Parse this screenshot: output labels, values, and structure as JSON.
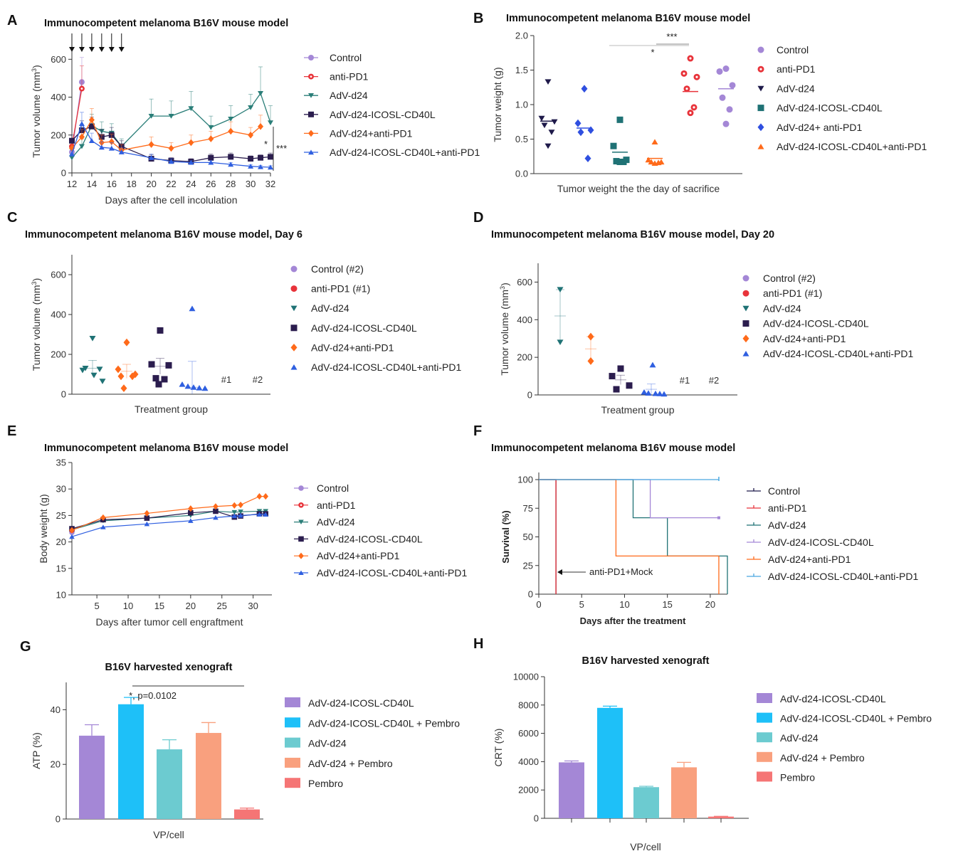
{
  "chart_data": [
    {
      "panel": "A",
      "type": "line",
      "title": "Immunocompetent melanoma B16V mouse model",
      "xlabel": "Days after the cell incolulation",
      "ylabel": "Tumor volume (mm³)",
      "xlim": [
        12,
        32
      ],
      "ylim": [
        0,
        650
      ],
      "xticks": [
        "12",
        "14",
        "16",
        "18",
        "20",
        "22",
        "24",
        "26",
        "28",
        "30",
        "32"
      ],
      "yticks": [
        "0",
        "200",
        "400",
        "600"
      ],
      "injection_days": [
        12,
        13,
        14,
        15,
        16,
        17
      ],
      "series": [
        {
          "name": "Control",
          "color": "#a487d6",
          "marker": "circle",
          "x": [
            12,
            13
          ],
          "y": [
            110,
            480
          ],
          "err": [
            20,
            130
          ]
        },
        {
          "name": "anti-PD1",
          "color": "#e8333a",
          "marker": "ring",
          "x": [
            12,
            13
          ],
          "y": [
            140,
            445
          ],
          "err": [
            25,
            120
          ]
        },
        {
          "name": "AdV-d24",
          "color": "#2a7e78",
          "marker": "tri-down",
          "x": [
            12,
            13,
            14,
            15,
            16,
            17,
            20,
            22,
            24,
            26,
            28,
            30,
            31,
            32
          ],
          "y": [
            80,
            140,
            250,
            220,
            210,
            140,
            300,
            300,
            340,
            240,
            285,
            345,
            420,
            265
          ],
          "err": [
            20,
            40,
            60,
            50,
            50,
            40,
            90,
            80,
            90,
            60,
            70,
            70,
            140,
            90
          ]
        },
        {
          "name": "AdV-d24-ICOSL-CD40L",
          "color": "#2b1d4e",
          "marker": "square",
          "x": [
            12,
            13,
            14,
            15,
            16,
            17,
            20,
            22,
            24,
            26,
            28,
            30,
            31,
            32
          ],
          "y": [
            170,
            225,
            245,
            190,
            200,
            140,
            75,
            65,
            60,
            80,
            85,
            75,
            80,
            85
          ],
          "err": [
            30,
            50,
            50,
            40,
            40,
            30,
            20,
            15,
            15,
            20,
            20,
            15,
            15,
            20
          ]
        },
        {
          "name": "AdV-d24+anti-PD1",
          "color": "#ff6a1a",
          "marker": "diamond",
          "x": [
            12,
            13,
            14,
            15,
            16,
            17,
            20,
            22,
            24,
            26,
            28,
            30,
            31
          ],
          "y": [
            130,
            190,
            280,
            160,
            165,
            120,
            150,
            130,
            160,
            180,
            220,
            200,
            245
          ],
          "err": [
            20,
            40,
            60,
            40,
            40,
            30,
            40,
            30,
            40,
            40,
            50,
            40,
            60
          ]
        },
        {
          "name": "AdV-d24-ICOSL-CD40L+anti-PD1",
          "color": "#2f5fe0",
          "marker": "tri-up",
          "x": [
            12,
            13,
            14,
            15,
            16,
            17,
            20,
            22,
            24,
            26,
            28,
            30,
            31,
            32
          ],
          "y": [
            100,
            260,
            170,
            135,
            130,
            110,
            80,
            60,
            55,
            55,
            45,
            35,
            32,
            30
          ],
          "err": [
            20,
            60,
            40,
            30,
            30,
            25,
            20,
            15,
            10,
            10,
            10,
            8,
            8,
            8
          ]
        }
      ],
      "annotations": [
        "*",
        "***"
      ]
    },
    {
      "panel": "B",
      "type": "scatter",
      "title": "Immunocompetent melanoma B16V mouse model",
      "xlabel": "Tumor weight the the day of sacrifice",
      "ylabel": "Tumor weight (g)",
      "ylim": [
        0,
        2.0
      ],
      "yticks": [
        "0.0",
        "0.5",
        "1.0",
        "1.5",
        "2.0"
      ],
      "series": [
        {
          "name": "AdV-d24",
          "color": "#1f1a4a",
          "marker": "tri-down",
          "values": [
            1.33,
            0.8,
            0.75,
            0.7,
            0.6,
            0.4
          ],
          "mean": 0.76
        },
        {
          "name": "AdV-d24+ anti-PD1",
          "color": "#2f4fe0",
          "marker": "diamond",
          "values": [
            1.23,
            0.73,
            0.63,
            0.6,
            0.22
          ],
          "mean": 0.66
        },
        {
          "name": "AdV-d24-ICOSL-CD40L",
          "color": "#1f7275",
          "marker": "square",
          "values": [
            0.78,
            0.4,
            0.2,
            0.18,
            0.17,
            0.17
          ],
          "mean": 0.31
        },
        {
          "name": "AdV-d24-ICOSL-CD40L+anti-PD1",
          "color": "#ff6a1a",
          "marker": "tri-up",
          "values": [
            0.46,
            0.2,
            0.17,
            0.17,
            0.16,
            0.15
          ],
          "mean": 0.22
        },
        {
          "name": "anti-PD1",
          "color": "#e8333a",
          "marker": "ring",
          "values": [
            1.67,
            1.45,
            1.4,
            1.23,
            0.96,
            0.88
          ],
          "mean": 1.19
        },
        {
          "name": "Control",
          "color": "#a487d6",
          "marker": "circle",
          "values": [
            1.52,
            1.48,
            1.28,
            1.1,
            0.93,
            0.72
          ],
          "mean": 1.23
        }
      ],
      "legend": [
        "Control",
        "anti-PD1",
        "AdV-d24",
        "AdV-d24-ICOSL-CD40L",
        "AdV-d24+ anti-PD1",
        "AdV-d24-ICOSL-CD40L+anti-PD1"
      ],
      "annotations": [
        "***",
        "*"
      ]
    },
    {
      "panel": "C",
      "type": "scatter",
      "title": "Immunocompetent melanoma B16V mouse model, Day 6",
      "xlabel": "Treatment group",
      "ylabel": "Tumor volume (mm³)",
      "ylim": [
        0,
        700
      ],
      "yticks": [
        "0",
        "200",
        "400",
        "600"
      ],
      "series": [
        {
          "name": "AdV-d24",
          "color": "#1f7275",
          "marker": "tri-down",
          "values": [
            280,
            130,
            125,
            120,
            95,
            65
          ],
          "mean": 130,
          "err": 40
        },
        {
          "name": "AdV-d24+anti-PD1",
          "color": "#ff6a1a",
          "marker": "diamond",
          "values": [
            260,
            125,
            100,
            90,
            90,
            30
          ],
          "mean": 115,
          "err": 35
        },
        {
          "name": "AdV-d24-ICOSL-CD40L",
          "color": "#2b1d4e",
          "marker": "square",
          "values": [
            320,
            150,
            145,
            80,
            75,
            50
          ],
          "mean": 140,
          "err": 40
        },
        {
          "name": "AdV-d24-ICOSL-CD40L+anti-PD1",
          "color": "#2f5fe0",
          "marker": "tri-up",
          "values": [
            430,
            50,
            40,
            35,
            32,
            30
          ],
          "mean": 35,
          "err": 130
        }
      ],
      "legend": [
        "Control (#2)",
        "anti-PD1 (#1)",
        "AdV-d24",
        "AdV-d24-ICOSL-CD40L",
        "AdV-d24+anti-PD1",
        "AdV-d24-ICOSL-CD40L+anti-PD1"
      ],
      "notes": [
        "#1",
        "#2"
      ]
    },
    {
      "panel": "D",
      "type": "scatter",
      "title": "Immunocompetent melanoma B16V mouse model, Day 20",
      "xlabel": "Treatment group",
      "ylabel": "Tumor volume (mm³)",
      "ylim": [
        0,
        700
      ],
      "yticks": [
        "0",
        "200",
        "400",
        "600"
      ],
      "series": [
        {
          "name": "AdV-d24",
          "color": "#1f7275",
          "marker": "tri-down",
          "values": [
            560,
            280
          ],
          "mean": 420,
          "err": 140
        },
        {
          "name": "AdV-d24+anti-PD1",
          "color": "#ff6a1a",
          "marker": "diamond",
          "values": [
            310,
            180
          ],
          "mean": 245,
          "err": 65
        },
        {
          "name": "AdV-d24-ICOSL-CD40L",
          "color": "#2b1d4e",
          "marker": "square",
          "values": [
            140,
            100,
            50,
            30
          ],
          "mean": 80,
          "err": 25
        },
        {
          "name": "AdV-d24-ICOSL-CD40L+anti-PD1",
          "color": "#2f5fe0",
          "marker": "tri-up",
          "values": [
            160,
            15,
            10,
            8,
            7,
            5
          ],
          "mean": 30,
          "err": 28
        }
      ],
      "legend": [
        "Control (#2)",
        "anti-PD1 (#1)",
        "AdV-d24",
        "AdV-d24-ICOSL-CD40L",
        "AdV-d24+anti-PD1",
        "AdV-d24-ICOSL-CD40L+anti-PD1"
      ],
      "notes": [
        "#1",
        "#2"
      ]
    },
    {
      "panel": "E",
      "type": "line",
      "title": "Immunocompetent melanoma B16V mouse model",
      "xlabel": "Days after tumor cell engraftment",
      "ylabel": "Body weight (g)",
      "xlim": [
        1,
        33
      ],
      "ylim": [
        10,
        35
      ],
      "xticks": [
        "5",
        "10",
        "15",
        "20",
        "25",
        "30"
      ],
      "yticks": [
        "10",
        "15",
        "20",
        "25",
        "30",
        "35"
      ],
      "series": [
        {
          "name": "Control",
          "color": "#a487d6",
          "marker": "circle",
          "x": [
            1
          ],
          "y": [
            21.8
          ]
        },
        {
          "name": "anti-PD1",
          "color": "#e8333a",
          "marker": "ring",
          "x": [
            1
          ],
          "y": [
            22.2
          ]
        },
        {
          "name": "AdV-d24",
          "color": "#2a7e78",
          "marker": "tri-down",
          "x": [
            1,
            6,
            13,
            20,
            24,
            27,
            28,
            31,
            32
          ],
          "y": [
            22.3,
            24.0,
            24.5,
            25.0,
            25.8,
            25.6,
            25.7,
            25.8,
            25.8
          ]
        },
        {
          "name": "AdV-d24-ICOSL-CD40L",
          "color": "#2b1d4e",
          "marker": "square",
          "x": [
            1,
            6,
            13,
            20,
            24,
            27,
            28,
            31,
            32
          ],
          "y": [
            22.5,
            24.2,
            24.5,
            25.5,
            25.8,
            24.7,
            24.9,
            25.3,
            25.3
          ]
        },
        {
          "name": "AdV-d24+anti-PD1",
          "color": "#ff6a1a",
          "marker": "diamond",
          "x": [
            1,
            6,
            13,
            20,
            24,
            27,
            28,
            31,
            32
          ],
          "y": [
            22.2,
            24.6,
            25.4,
            26.3,
            26.7,
            26.9,
            27.0,
            28.6,
            28.6
          ]
        },
        {
          "name": "AdV-d24-ICOSL-CD40L+anti-PD1",
          "color": "#2f5fe0",
          "marker": "tri-up",
          "x": [
            1,
            6,
            13,
            20,
            24,
            27,
            28,
            31,
            32
          ],
          "y": [
            21.0,
            22.8,
            23.4,
            24.0,
            24.6,
            24.9,
            25.0,
            25.2,
            25.2
          ]
        }
      ]
    },
    {
      "panel": "F",
      "type": "line",
      "title": "Immunocompetent melanoma B16V mouse model",
      "xlabel": "Days after the treatment",
      "ylabel": "Survival (%)",
      "xlim": [
        0,
        22
      ],
      "ylim": [
        0,
        100
      ],
      "xticks": [
        "0",
        "5",
        "10",
        "15",
        "20"
      ],
      "yticks": [
        "0",
        "25",
        "50",
        "75",
        "100"
      ],
      "series": [
        {
          "name": "Control",
          "color": "#1f1a4a",
          "x": [
            0,
            2,
            2
          ],
          "y": [
            100,
            100,
            0
          ]
        },
        {
          "name": "anti-PD1",
          "color": "#e8333a",
          "x": [
            0,
            2,
            2
          ],
          "y": [
            100,
            100,
            0
          ]
        },
        {
          "name": "AdV-d24",
          "color": "#1f7275",
          "x": [
            0,
            11,
            11,
            15,
            15,
            22,
            22
          ],
          "y": [
            100,
            100,
            66.7,
            66.7,
            33.3,
            33.3,
            0
          ]
        },
        {
          "name": "AdV-d24-ICOSL-CD40L",
          "color": "#a487d6",
          "x": [
            0,
            13,
            13,
            21
          ],
          "y": [
            100,
            100,
            66.7,
            66.7
          ]
        },
        {
          "name": "AdV-d24+anti-PD1",
          "color": "#ff6a1a",
          "x": [
            0,
            9,
            9,
            21,
            21
          ],
          "y": [
            100,
            100,
            33.3,
            33.3,
            0
          ]
        },
        {
          "name": "AdV-d24-ICOSL-CD40L+anti-PD1",
          "color": "#4aa8e0",
          "x": [
            0,
            21
          ],
          "y": [
            100,
            100
          ]
        }
      ],
      "annotation": "anti-PD1+Mock"
    },
    {
      "panel": "G",
      "type": "bar",
      "title": "B16V harvested xenograft",
      "xlabel": "VP/cell",
      "ylabel": "ATP (%)",
      "ylim": [
        0,
        50
      ],
      "yticks": [
        "0",
        "20",
        "40"
      ],
      "categories": [
        "AdV-d24-ICOSL-CD40L",
        "AdV-d24-ICOSL-CD40L + Pembro",
        "AdV-d24",
        "AdV-d24 + Pembro",
        "Pembro"
      ],
      "values": [
        30.5,
        42.0,
        25.5,
        31.5,
        3.5
      ],
      "errors": [
        4.0,
        2.5,
        3.5,
        3.8,
        0.5
      ],
      "colors": [
        "#a487d6",
        "#1ec0f8",
        "#6ccbd0",
        "#f9a07e",
        "#f57575"
      ],
      "annotation": "*, p=0.0102"
    },
    {
      "panel": "H",
      "type": "bar",
      "title": "B16V harvested xenograft",
      "xlabel": "VP/cell",
      "ylabel": "CRT (%)",
      "ylim": [
        0,
        10000
      ],
      "yticks": [
        "0",
        "2000",
        "4000",
        "6000",
        "8000",
        "10000"
      ],
      "categories": [
        "AdV-d24-ICOSL-CD40L",
        "AdV-d24-ICOSL-CD40L + Pembro",
        "AdV-d24",
        "AdV-d24 + Pembro",
        "Pembro"
      ],
      "values": [
        3950,
        7800,
        2200,
        3600,
        120
      ],
      "errors": [
        100,
        120,
        60,
        350,
        20
      ],
      "colors": [
        "#a487d6",
        "#1ec0f8",
        "#6ccbd0",
        "#f9a07e",
        "#f57575"
      ]
    }
  ]
}
